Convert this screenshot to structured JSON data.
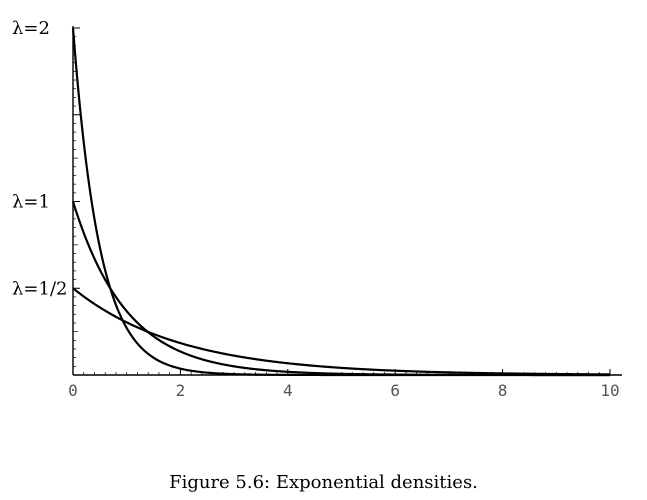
{
  "caption": "Figure 5.6: Exponential densities.",
  "chart_data": {
    "type": "line",
    "title": "",
    "xlabel": "",
    "ylabel": "",
    "xlim": [
      0,
      10
    ],
    "ylim": [
      0,
      2
    ],
    "x_ticks": [
      0,
      2,
      4,
      6,
      8,
      10
    ],
    "grid": false,
    "curve_color": "#000000",
    "series": [
      {
        "name": "λ=2",
        "lambda": 2
      },
      {
        "name": "λ=1",
        "lambda": 1
      },
      {
        "name": "λ=1/2",
        "lambda": 0.5
      }
    ]
  }
}
